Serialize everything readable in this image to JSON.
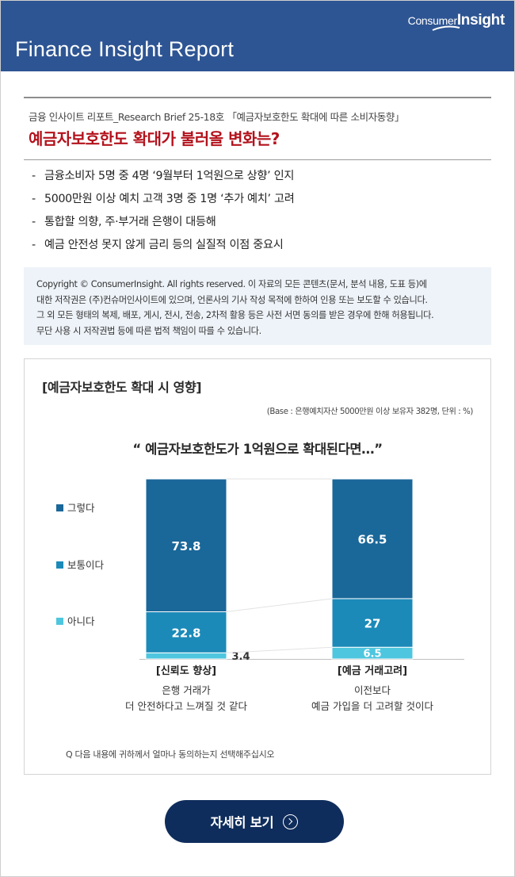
{
  "header": {
    "title": "Finance Insight Report",
    "logo_part1": "Consumer",
    "logo_part2": "Insight"
  },
  "article": {
    "subtitle": "금융 인사이트 리포트_Research Brief 25-18호 「예금자보호한도 확대에 따른 소비자동향」",
    "headline": "예금자보호한도 확대가 불러올 변화는?",
    "bullets": [
      "금융소비자 5명 중 4명 ‘9월부터 1억원으로 상향’ 인지",
      "5000만원 이상 예치 고객 3명 중 1명 ‘추가 예치’ 고려",
      "통합할 의향, 주·부거래 은행이 대등해",
      "예금 안전성 못지 않게 금리 등의 실질적 이점 중요시"
    ]
  },
  "copyright": {
    "lines": [
      "Copyright © ConsumerInsight. All rights reserved. 이 자료의 모든 콘텐츠(문서, 분석 내용, 도표 등)에",
      "대한 저작권은 (주)컨슈머인사이트에 있으며, 언론사의 기사 작성 목적에 한하여 인용 또는 보도할 수 있습니다.",
      "그 외 모든 형태의 복제, 배포, 게시, 전시, 전송, 2차적 활용 등은 사전 서면 동의를 받은 경우에 한해 허용됩니다.",
      "무단 사용 시 저작권법 등에 따른 법적 책임이 따를 수 있습니다."
    ]
  },
  "chart_card": {
    "question_note": "Q  다음 내용에 귀하께서 얼마나 동의하는지 선택해주십시오"
  },
  "chart_data": {
    "type": "bar",
    "stacked": true,
    "title": "[예금자보호한도 확대 시 영향]",
    "base_note": "(Base : 은행예치자산 5000만원 이상 보유자 382명, 단위 : %)",
    "subtitle": "“ 예금자보호한도가 1억원으로 확대된다면…”",
    "categories": [
      {
        "label": "[신뢰도 향상]",
        "desc": [
          "은행 거래가",
          "더 안전하다고 느껴질 것 같다"
        ]
      },
      {
        "label": "[예금 거래고려]",
        "desc": [
          "이전보다",
          "예금 가입을 더 고려할 것이다"
        ]
      }
    ],
    "series": [
      {
        "name": "아니다",
        "color": "#4fc6df",
        "values": [
          3.4,
          6.5
        ]
      },
      {
        "name": "보통이다",
        "color": "#1b8ab8",
        "values": [
          22.8,
          27.0
        ]
      },
      {
        "name": "그렇다",
        "color": "#1a6799",
        "values": [
          73.8,
          66.5
        ]
      }
    ],
    "legend_order": [
      "그렇다",
      "보통이다",
      "아니다"
    ],
    "legend_position": "left",
    "ylim": [
      0,
      100
    ],
    "grid": false
  },
  "cta": {
    "label": "자세히 보기",
    "icon": "circle-arrow-right-icon"
  }
}
